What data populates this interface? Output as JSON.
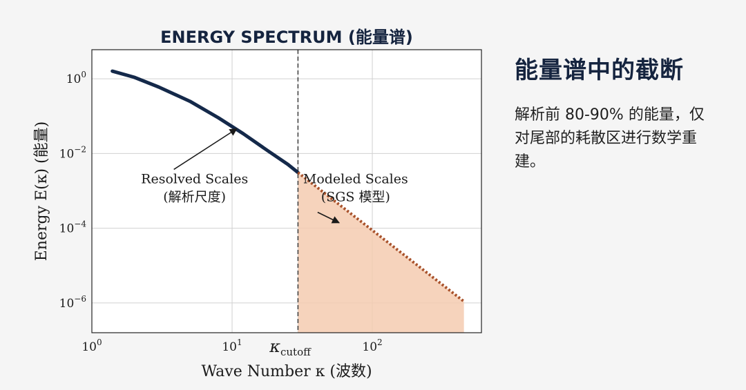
{
  "chart_data": {
    "type": "line",
    "title": "ENERGY SPECTRUM (能量谱)",
    "xlabel": "Wave Number κ (波数)",
    "ylabel": "Energy E(κ) (能量)",
    "x_scale": "log",
    "y_scale": "log",
    "xlim": [
      1,
      600
    ],
    "ylim": [
      1.6e-07,
      6
    ],
    "grid": true,
    "x_ticks": [
      {
        "value": 1,
        "base": "10",
        "exp": "0"
      },
      {
        "value": 10,
        "base": "10",
        "exp": "1"
      },
      {
        "value": 100,
        "base": "10",
        "exp": "2"
      }
    ],
    "y_ticks": [
      {
        "value": 1,
        "base": "10",
        "exp": "0"
      },
      {
        "value": 0.01,
        "base": "10",
        "exp": "−2"
      },
      {
        "value": 0.0001,
        "base": "10",
        "exp": "−4"
      },
      {
        "value": 1e-06,
        "base": "10",
        "exp": "−6"
      }
    ],
    "cutoff": {
      "x": 29.5,
      "label_main": "κ",
      "label_sub": "cutoff"
    },
    "series": [
      {
        "name": "Resolved Scales",
        "style": "solid",
        "color": "#14294a",
        "x": [
          1.4,
          2,
          3,
          5,
          8,
          12,
          18,
          25,
          29.5
        ],
        "y": [
          1.6,
          1.1,
          0.6,
          0.25,
          0.09,
          0.034,
          0.0118,
          0.0051,
          0.0031
        ]
      },
      {
        "name": "Modeled Scales",
        "style": "dotted",
        "color": "#a8512a",
        "fill": "#f4cbb0",
        "x": [
          29.5,
          450
        ],
        "y": [
          0.0031,
          1.1e-06
        ]
      }
    ],
    "annotations": [
      {
        "line1": "Resolved Scales",
        "line2": "(解析尺度)",
        "text_x": 5.4,
        "text_y": 0.0016,
        "arrow_to_x": 10.8,
        "arrow_to_y": 0.046
      },
      {
        "line1": "Modeled Scales",
        "line2": "(SGS 模型)",
        "text_x": 76,
        "text_y": 0.0016,
        "arrow_to_x": 58,
        "arrow_to_y": 0.00014
      }
    ]
  },
  "side": {
    "title": "能量谱中的截断",
    "body": "解析前 80-90% 的能量，仅对尾部的耗散区进行数学重建。"
  }
}
